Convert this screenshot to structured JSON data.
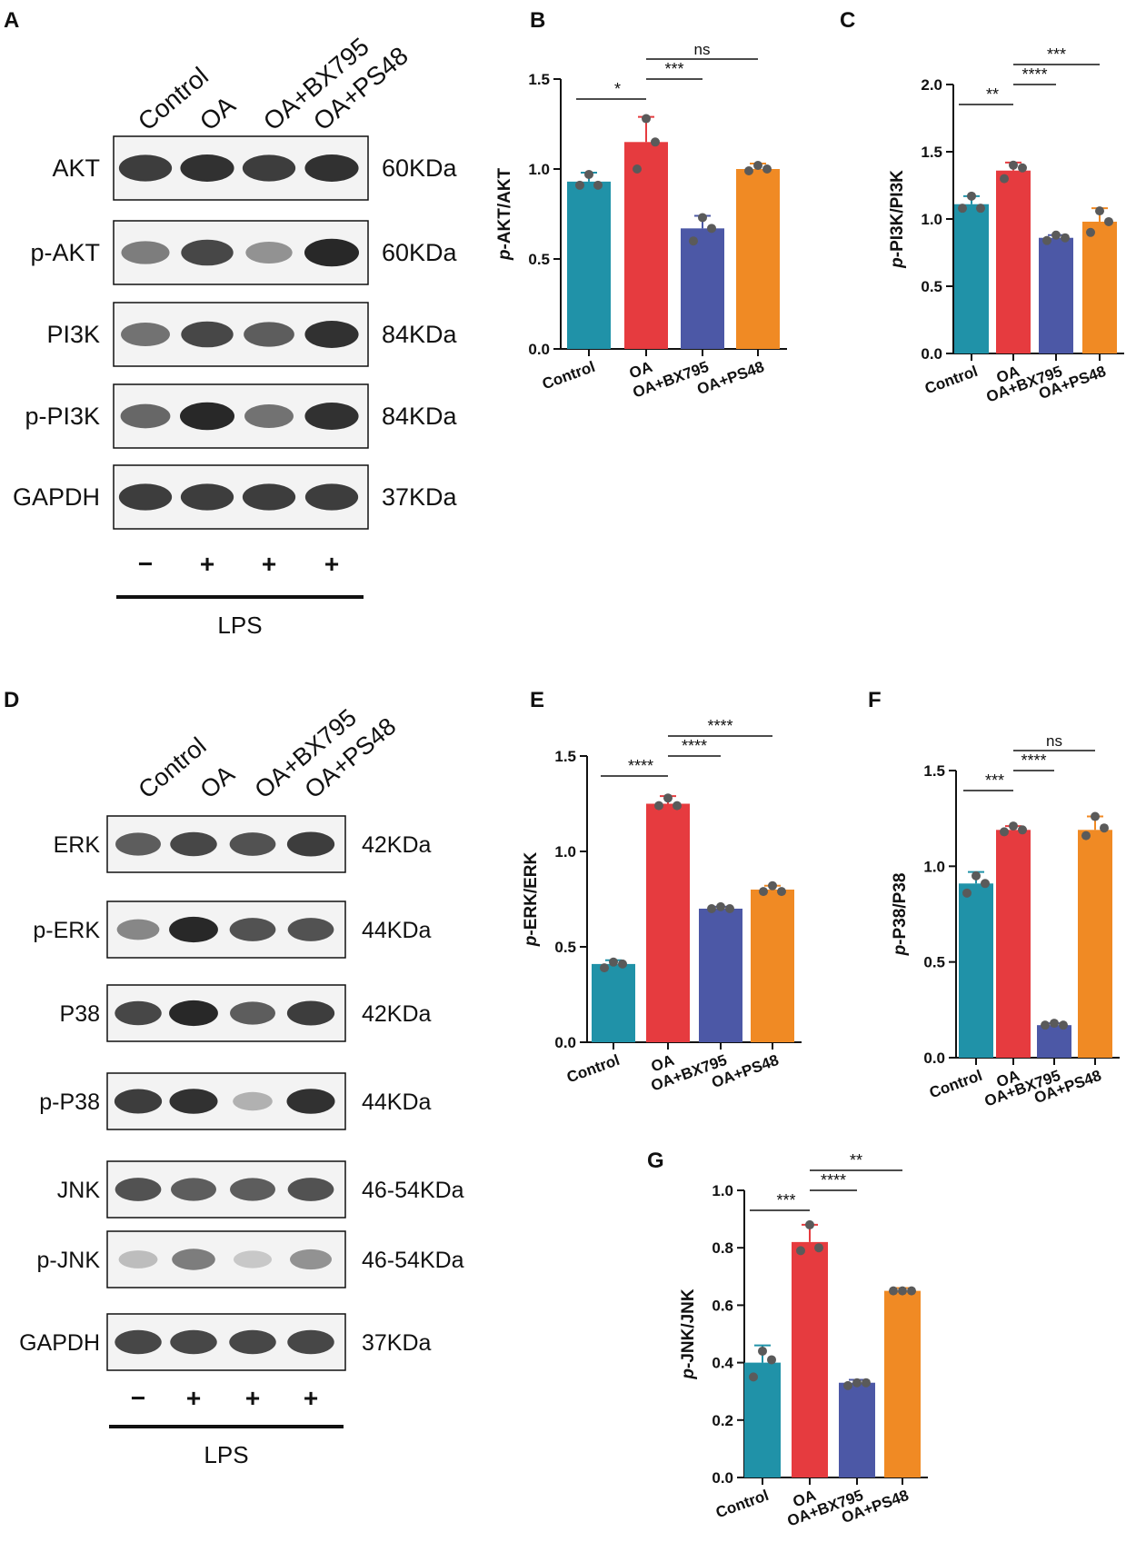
{
  "panel_labels": [
    "A",
    "B",
    "C",
    "D",
    "E",
    "F",
    "G"
  ],
  "blot_a": {
    "lane_labels": [
      "Control",
      "OA",
      "OA+BX795",
      "OA+PS48"
    ],
    "rows": [
      {
        "protein": "AKT",
        "mw": "60KDa"
      },
      {
        "protein": "p-AKT",
        "mw": "60KDa"
      },
      {
        "protein": "PI3K",
        "mw": "84KDa"
      },
      {
        "protein": "p-PI3K",
        "mw": "84KDa"
      },
      {
        "protein": "GAPDH",
        "mw": "37KDa"
      }
    ],
    "treatment_signs": [
      "−",
      "+",
      "+",
      "+"
    ],
    "treatment_label": "LPS",
    "band_intensity": [
      [
        0.85,
        0.9,
        0.85,
        0.9
      ],
      [
        0.55,
        0.8,
        0.45,
        0.95
      ],
      [
        0.6,
        0.8,
        0.7,
        0.9
      ],
      [
        0.65,
        0.95,
        0.6,
        0.9
      ],
      [
        0.85,
        0.85,
        0.85,
        0.85
      ]
    ]
  },
  "blot_d": {
    "lane_labels": [
      "Control",
      "OA",
      "OA+BX795",
      "OA+PS48"
    ],
    "rows": [
      {
        "protein": "ERK",
        "mw": "42KDa"
      },
      {
        "protein": "p-ERK",
        "mw": "44KDa"
      },
      {
        "protein": "P38",
        "mw": "42KDa"
      },
      {
        "protein": "p-P38",
        "mw": "44KDa"
      },
      {
        "protein": "JNK",
        "mw": "46-54KDa"
      },
      {
        "protein": "p-JNK",
        "mw": "46-54KDa"
      },
      {
        "protein": "GAPDH",
        "mw": "37KDa"
      }
    ],
    "treatment_signs": [
      "−",
      "+",
      "+",
      "+"
    ],
    "treatment_label": "LPS",
    "band_intensity": [
      [
        0.7,
        0.8,
        0.75,
        0.85
      ],
      [
        0.5,
        0.95,
        0.75,
        0.75
      ],
      [
        0.8,
        0.95,
        0.7,
        0.85
      ],
      [
        0.85,
        0.9,
        0.3,
        0.9
      ],
      [
        0.75,
        0.7,
        0.7,
        0.75
      ],
      [
        0.25,
        0.55,
        0.2,
        0.45
      ],
      [
        0.8,
        0.8,
        0.8,
        0.8
      ]
    ]
  },
  "colors": {
    "Control": "#2092a8",
    "OA": "#e63b3f",
    "OA+BX795": "#4c58a6",
    "OA+PS48": "#f08a24",
    "dot": "#5a5a5a"
  },
  "chart_data": [
    {
      "panel": "B",
      "type": "bar",
      "categories": [
        "Control",
        "OA",
        "OA+BX795",
        "OA+PS48"
      ],
      "values": [
        0.93,
        1.15,
        0.67,
        1.0
      ],
      "errors": [
        0.05,
        0.14,
        0.07,
        0.03
      ],
      "points": [
        [
          0.91,
          0.91,
          0.97
        ],
        [
          1.0,
          1.15,
          1.28
        ],
        [
          0.6,
          0.67,
          0.73
        ],
        [
          0.99,
          1.0,
          1.02
        ]
      ],
      "ylabel": "p-AKT/AKT",
      "ylim": [
        0,
        1.5
      ],
      "yticks": [
        0.0,
        0.5,
        1.0,
        1.5
      ],
      "significance": [
        {
          "from": 0,
          "to": 1,
          "label": "*"
        },
        {
          "from": 1,
          "to": 2,
          "label": "***"
        },
        {
          "from": 1,
          "to": 3,
          "label": "ns"
        }
      ]
    },
    {
      "panel": "C",
      "type": "bar",
      "categories": [
        "Control",
        "OA",
        "OA+BX795",
        "OA+PS48"
      ],
      "values": [
        1.11,
        1.36,
        0.86,
        0.98
      ],
      "errors": [
        0.06,
        0.06,
        0.02,
        0.1
      ],
      "points": [
        [
          1.08,
          1.08,
          1.17
        ],
        [
          1.3,
          1.38,
          1.4
        ],
        [
          0.84,
          0.86,
          0.88
        ],
        [
          0.9,
          0.98,
          1.06
        ]
      ],
      "ylabel": "p-PI3K/PI3K",
      "ylim": [
        0,
        2.0
      ],
      "yticks": [
        0.0,
        0.5,
        1.0,
        1.5,
        2.0
      ],
      "significance": [
        {
          "from": 0,
          "to": 1,
          "label": "**"
        },
        {
          "from": 1,
          "to": 2,
          "label": "****"
        },
        {
          "from": 1,
          "to": 3,
          "label": "***"
        }
      ]
    },
    {
      "panel": "E",
      "type": "bar",
      "categories": [
        "Control",
        "OA",
        "OA+BX795",
        "OA+PS48"
      ],
      "values": [
        0.41,
        1.25,
        0.7,
        0.8
      ],
      "errors": [
        0.02,
        0.04,
        0.01,
        0.02
      ],
      "points": [
        [
          0.39,
          0.41,
          0.42
        ],
        [
          1.24,
          1.24,
          1.28
        ],
        [
          0.7,
          0.7,
          0.71
        ],
        [
          0.79,
          0.79,
          0.82
        ]
      ],
      "ylabel": "p-ERK/ERK",
      "ylim": [
        0,
        1.5
      ],
      "yticks": [
        0.0,
        0.5,
        1.0,
        1.5
      ],
      "significance": [
        {
          "from": 0,
          "to": 1,
          "label": "****"
        },
        {
          "from": 1,
          "to": 2,
          "label": "****"
        },
        {
          "from": 1,
          "to": 3,
          "label": "****"
        }
      ]
    },
    {
      "panel": "F",
      "type": "bar",
      "categories": [
        "Control",
        "OA",
        "OA+BX795",
        "OA+PS48"
      ],
      "values": [
        0.91,
        1.19,
        0.17,
        1.19
      ],
      "errors": [
        0.06,
        0.02,
        0.01,
        0.07
      ],
      "points": [
        [
          0.86,
          0.91,
          0.95
        ],
        [
          1.18,
          1.19,
          1.21
        ],
        [
          0.17,
          0.17,
          0.18
        ],
        [
          1.16,
          1.2,
          1.26
        ]
      ],
      "ylabel": "p-P38/P38",
      "ylim": [
        0,
        1.5
      ],
      "yticks": [
        0.0,
        0.5,
        1.0,
        1.5
      ],
      "significance": [
        {
          "from": 0,
          "to": 1,
          "label": "***"
        },
        {
          "from": 1,
          "to": 2,
          "label": "****"
        },
        {
          "from": 1,
          "to": 3,
          "label": "ns"
        }
      ]
    },
    {
      "panel": "G",
      "type": "bar",
      "categories": [
        "Control",
        "OA",
        "OA+BX795",
        "OA+PS48"
      ],
      "values": [
        0.4,
        0.82,
        0.33,
        0.65
      ],
      "errors": [
        0.06,
        0.06,
        0.01,
        0.01
      ],
      "points": [
        [
          0.35,
          0.41,
          0.44
        ],
        [
          0.79,
          0.8,
          0.88
        ],
        [
          0.32,
          0.33,
          0.33
        ],
        [
          0.65,
          0.65,
          0.65
        ]
      ],
      "ylabel": "p-JNK/JNK",
      "ylim": [
        0,
        1.0
      ],
      "yticks": [
        0.0,
        0.2,
        0.4,
        0.6,
        0.8,
        1.0
      ],
      "significance": [
        {
          "from": 0,
          "to": 1,
          "label": "***"
        },
        {
          "from": 1,
          "to": 2,
          "label": "****"
        },
        {
          "from": 1,
          "to": 3,
          "label": "**"
        }
      ]
    }
  ]
}
